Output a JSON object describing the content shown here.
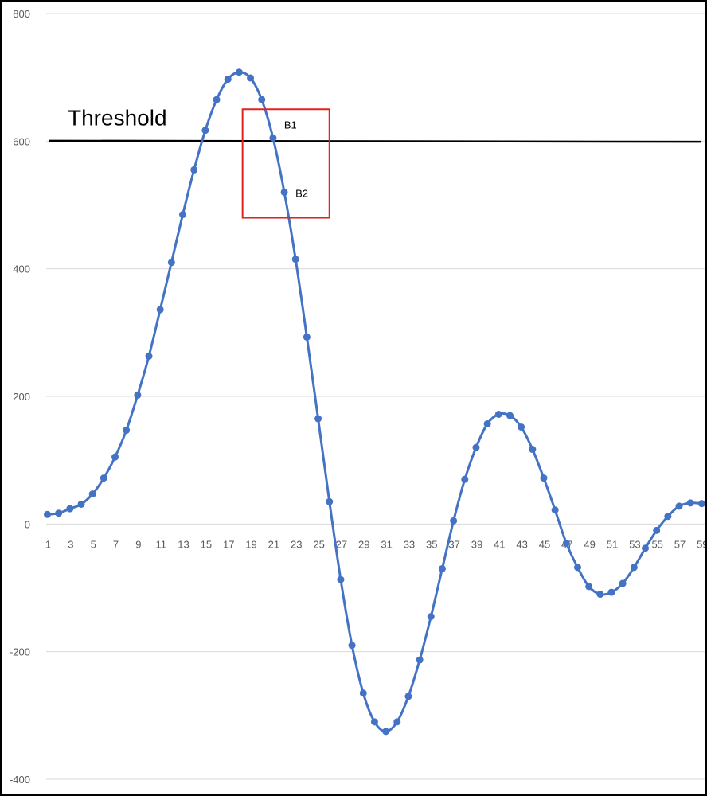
{
  "chart_data": {
    "type": "line",
    "title": "",
    "xlabel": "",
    "ylabel": "",
    "ylim": [
      -400,
      800
    ],
    "yticks": [
      -400,
      -200,
      0,
      200,
      400,
      600,
      800
    ],
    "x_tick_labels": [
      "1",
      "3",
      "5",
      "7",
      "9",
      "11",
      "13",
      "15",
      "17",
      "19",
      "21",
      "23",
      "25",
      "27",
      "29",
      "31",
      "33",
      "35",
      "37",
      "39",
      "41",
      "43",
      "45",
      "47",
      "49",
      "51",
      "53",
      "55",
      "57",
      "59"
    ],
    "grid": true,
    "legend": "none",
    "series": [
      {
        "color": "#4472C4",
        "marker": "circle",
        "smooth": true,
        "x": [
          1,
          2,
          3,
          4,
          5,
          6,
          7,
          8,
          9,
          10,
          11,
          12,
          13,
          14,
          15,
          16,
          17,
          18,
          19,
          20,
          21,
          22,
          23,
          24,
          25,
          26,
          27,
          28,
          29,
          30,
          31,
          32,
          33,
          34,
          35,
          36,
          37,
          38,
          39,
          40,
          41,
          42,
          43,
          44,
          45,
          46,
          47,
          48,
          49,
          50,
          51,
          52,
          53,
          54,
          55,
          56,
          57,
          58,
          59
        ],
        "values": [
          15,
          17,
          24,
          31,
          47,
          72,
          105,
          147,
          202,
          263,
          336,
          410,
          485,
          555,
          617,
          665,
          697,
          708,
          699,
          665,
          605,
          520,
          415,
          293,
          165,
          35,
          -87,
          -190,
          -265,
          -310,
          -325,
          -310,
          -270,
          -213,
          -145,
          -70,
          5,
          70,
          120,
          157,
          172,
          170,
          152,
          117,
          72,
          22,
          -30,
          -68,
          -98,
          -110,
          -107,
          -93,
          -68,
          -38,
          -10,
          12,
          28,
          33,
          32
        ]
      }
    ],
    "annotations": {
      "threshold": {
        "value": 600,
        "label": "Threshold",
        "color": "#000000"
      },
      "highlight_box": {
        "x_range": [
          18.3,
          26.0
        ],
        "y_range": [
          480,
          650
        ],
        "color": "#E0241D"
      },
      "point_labels": [
        {
          "label": "B1",
          "x": 21,
          "y": 605
        },
        {
          "label": "B2",
          "x": 22,
          "y": 520
        }
      ]
    }
  }
}
